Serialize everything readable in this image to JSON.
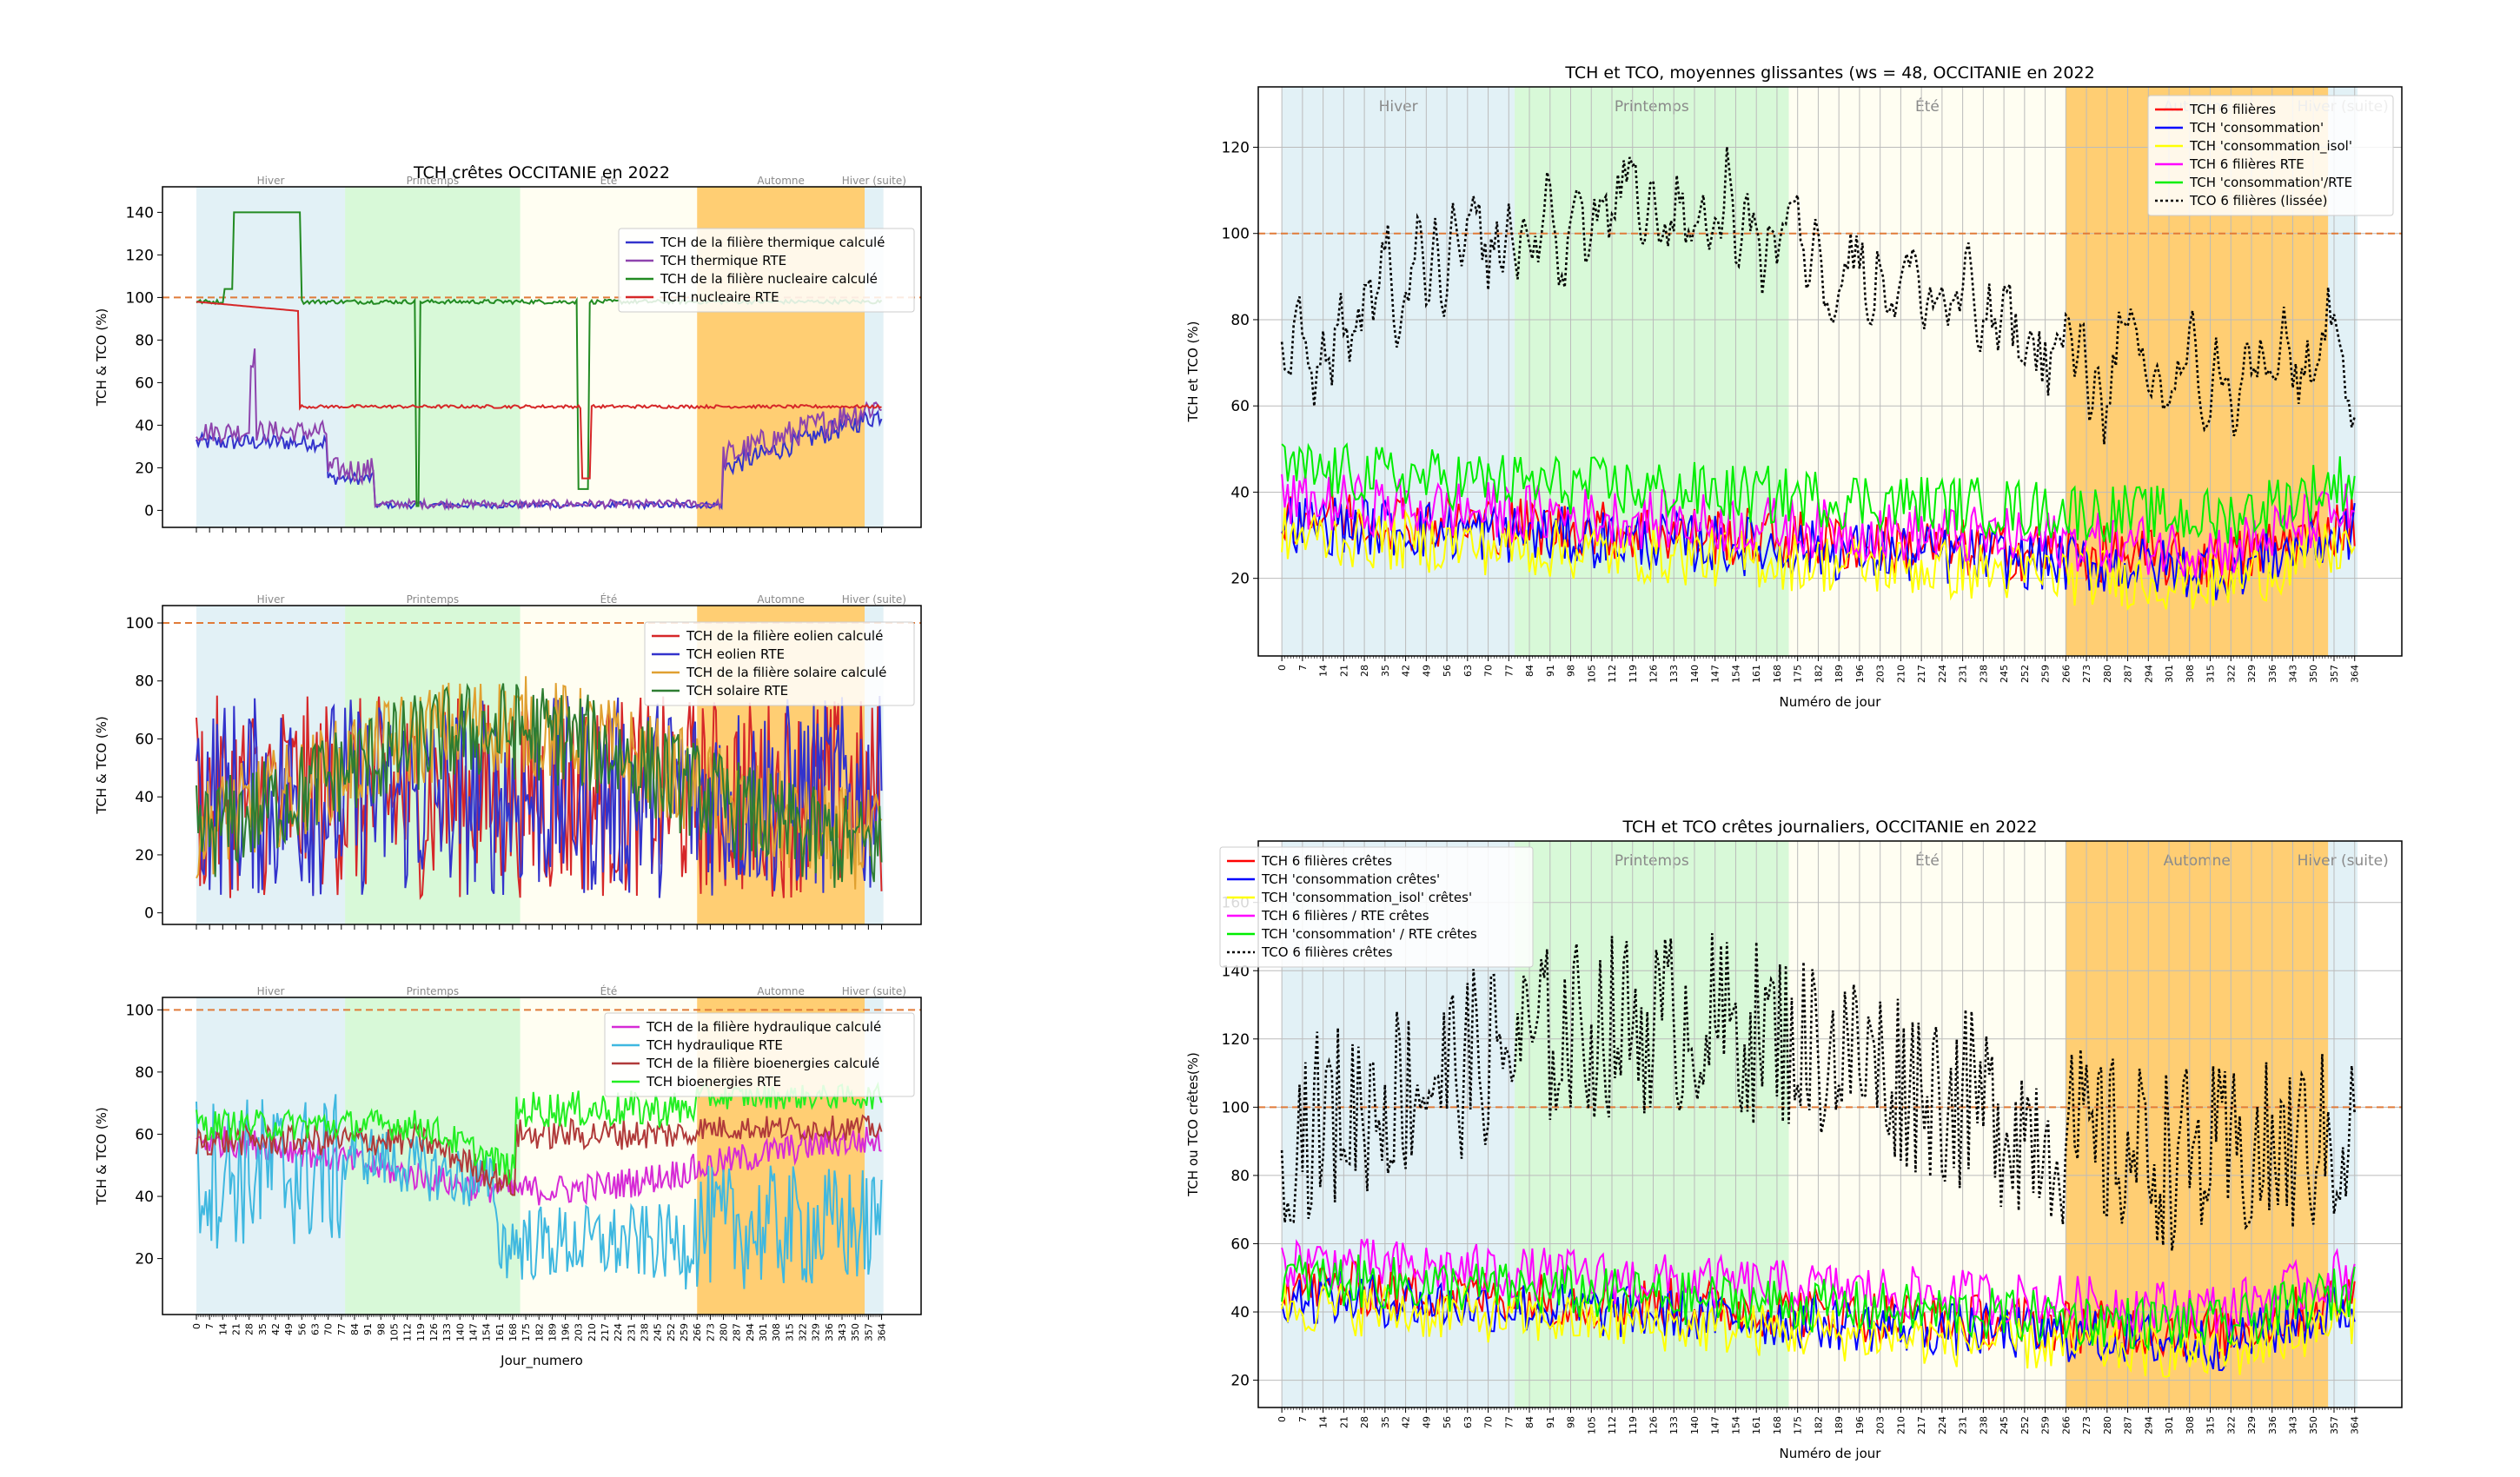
{
  "colors": {
    "hiver": "#add8e6",
    "printemps": "#90ee90",
    "ete": "#fffacd",
    "automne": "#ffa500",
    "refline": "#e07b39"
  },
  "chart_data": [
    {
      "id": "thermo",
      "type": "line",
      "title": "TCH crêtes OCCITANIE en 2022",
      "ylabel": "TCH & TCO (%)",
      "xlabel": "",
      "ylim": [
        -8,
        152
      ],
      "yticks": [
        0,
        20,
        40,
        60,
        80,
        100,
        120,
        140
      ],
      "seasons": [
        "Hiver",
        "Printemps",
        "Été",
        "Automne",
        "Hiver (suite)"
      ],
      "series": [
        {
          "name": "TCH de la filière thermique calculé",
          "color": "#3333cc"
        },
        {
          "name": "TCH thermique RTE",
          "color": "#8e44ad"
        },
        {
          "name": "TCH de la filière nucleaire calculé",
          "color": "#228b22"
        },
        {
          "name": "TCH nucleaire RTE",
          "color": "#d62728"
        }
      ]
    },
    {
      "id": "eolsol",
      "type": "line",
      "title": "",
      "ylabel": "TCH & TCO (%)",
      "xlabel": "",
      "ylim": [
        -4,
        106
      ],
      "yticks": [
        0,
        20,
        40,
        60,
        80,
        100
      ],
      "seasons": [
        "Hiver",
        "Printemps",
        "Été",
        "Automne",
        "Hiver (suite)"
      ],
      "series": [
        {
          "name": "TCH de la filière eolien calculé",
          "color": "#d62728"
        },
        {
          "name": "TCH eolien RTE",
          "color": "#3333cc"
        },
        {
          "name": "TCH de la filière solaire calculé",
          "color": "#e0a030"
        },
        {
          "name": "TCH solaire RTE",
          "color": "#2e7d32"
        }
      ]
    },
    {
      "id": "hydro",
      "type": "line",
      "title": "",
      "ylabel": "TCH & TCO (%)",
      "xlabel": "Jour_numero",
      "ylim": [
        2,
        104
      ],
      "yticks": [
        20,
        40,
        60,
        80,
        100
      ],
      "seasons": [
        "Hiver",
        "Printemps",
        "Été",
        "Automne",
        "Hiver (suite)"
      ],
      "xticks": [
        0,
        7,
        14,
        21,
        28,
        35,
        42,
        49,
        56,
        63,
        70,
        77,
        84,
        91,
        98,
        105,
        112,
        119,
        126,
        133,
        140,
        147,
        154,
        161,
        168,
        175,
        182,
        189,
        196,
        203,
        210,
        217,
        224,
        231,
        238,
        245,
        252,
        259,
        266,
        273,
        280,
        287,
        294,
        301,
        308,
        315,
        322,
        329,
        336,
        343,
        350,
        357,
        364
      ],
      "series": [
        {
          "name": "TCH de la filière hydraulique calculé",
          "color": "#d62ad6"
        },
        {
          "name": "TCH hydraulique RTE",
          "color": "#3fb8e0"
        },
        {
          "name": "TCH de la filière bioenergies calculé",
          "color": "#b03a3a"
        },
        {
          "name": "TCH bioenergies RTE",
          "color": "#22ee22"
        }
      ]
    },
    {
      "id": "moy",
      "type": "line",
      "title": "TCH et TCO, moyennes glissantes (ws = 48, OCCITANIE en 2022",
      "ylabel": "TCH et TCO (%)",
      "xlabel": "Numéro de jour",
      "ylim": [
        2,
        134
      ],
      "yticks": [
        20,
        40,
        60,
        80,
        100,
        120
      ],
      "seasons": [
        "Hiver",
        "Printemps",
        "Été",
        "Automne",
        "Hiver (suite)"
      ],
      "xticks": [
        0,
        7,
        14,
        21,
        28,
        35,
        42,
        49,
        56,
        63,
        70,
        77,
        84,
        91,
        98,
        105,
        112,
        119,
        126,
        133,
        140,
        147,
        154,
        161,
        168,
        175,
        182,
        189,
        196,
        203,
        210,
        217,
        224,
        231,
        238,
        245,
        252,
        259,
        266,
        273,
        280,
        287,
        294,
        301,
        308,
        315,
        322,
        329,
        336,
        343,
        350,
        357,
        364
      ],
      "series": [
        {
          "name": "TCH 6 filières",
          "color": "#ff0000"
        },
        {
          "name": "TCH 'consommation'",
          "color": "#0000ff"
        },
        {
          "name": "TCH 'consommation_isol'",
          "color": "#ffff00"
        },
        {
          "name": "TCH 6 filières RTE",
          "color": "#ff00ff"
        },
        {
          "name": "TCH 'consommation'/RTE",
          "color": "#00ee00"
        },
        {
          "name": "TCO 6 filières (lissée)",
          "color": "#000000"
        }
      ]
    },
    {
      "id": "cretes",
      "type": "line",
      "title": "TCH et TCO crêtes journaliers, OCCITANIE en 2022",
      "ylabel": "TCH ou TCO crêtes(%)",
      "xlabel": "Numéro de jour",
      "ylim": [
        12,
        178
      ],
      "yticks": [
        20,
        40,
        60,
        80,
        100,
        120,
        140,
        160
      ],
      "seasons": [
        "",
        "Printemps",
        "Été",
        "Automne",
        "Hiver (suite)"
      ],
      "xticks": [
        0,
        7,
        14,
        21,
        28,
        35,
        42,
        49,
        56,
        63,
        70,
        77,
        84,
        91,
        98,
        105,
        112,
        119,
        126,
        133,
        140,
        147,
        154,
        161,
        168,
        175,
        182,
        189,
        196,
        203,
        210,
        217,
        224,
        231,
        238,
        245,
        252,
        259,
        266,
        273,
        280,
        287,
        294,
        301,
        308,
        315,
        322,
        329,
        336,
        343,
        350,
        357,
        364
      ],
      "series": [
        {
          "name": "TCH 6 filières crêtes",
          "color": "#ff0000"
        },
        {
          "name": "TCH 'consommation crêtes'",
          "color": "#0000ff"
        },
        {
          "name": "TCH 'consommation_isol' crêtes'",
          "color": "#ffff00"
        },
        {
          "name": "TCH 6 filières / RTE crêtes",
          "color": "#ff00ff"
        },
        {
          "name": "TCH 'consommation' / RTE crêtes",
          "color": "#00ee00"
        },
        {
          "name": "TCO 6 filières crêtes",
          "color": "#000000"
        }
      ]
    }
  ]
}
